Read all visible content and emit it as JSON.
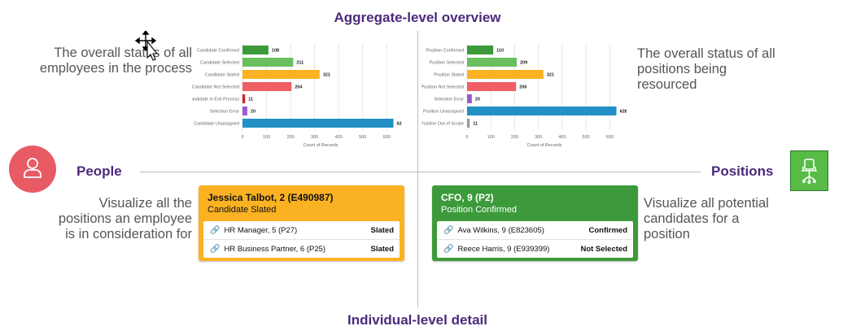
{
  "top_heading": "Aggregate-level overview",
  "bottom_heading": "Individual-level detail",
  "left_label": "People",
  "right_label": "Positions",
  "desc_top_left": [
    "The overall status of all",
    "employees in the process"
  ],
  "desc_top_right": [
    "The overall status of all",
    "positions being",
    "resourced"
  ],
  "desc_bottom_left": [
    "Visualize all the",
    "positions an employee",
    "is in consideration for"
  ],
  "desc_bottom_right": [
    "Visualize all potential",
    "candidates for a",
    "position"
  ],
  "icons": {
    "people": "person-icon",
    "positions": "office-chair-icon",
    "cursor": "move-cursor-icon",
    "link": "link-icon"
  },
  "colors": {
    "accent": "#4b2a7b",
    "people": "#e85a64",
    "positions": "#57bb46",
    "slated": "#fbb222",
    "confirmed": "#3c9a3a"
  },
  "chart_data": [
    {
      "type": "bar",
      "orientation": "horizontal",
      "categories": [
        "Candidate Confirmed",
        "Candidate Selected",
        "Candidate Slated",
        "Candidate Not Selected",
        "Candidate in Exit Process",
        "Selection Error",
        "Candidate Unassigned"
      ],
      "values": [
        108,
        211,
        321,
        204,
        11,
        20,
        628
      ],
      "colors": [
        "#3c9a3a",
        "#6abf5e",
        "#fbb222",
        "#ef5f63",
        "#d61f1f",
        "#9b59d0",
        "#2290c4"
      ],
      "xticks": [
        0,
        100,
        200,
        300,
        400,
        500,
        600
      ],
      "xlim": [
        0,
        650
      ],
      "xlabel": "Count of Records",
      "grid": true
    },
    {
      "type": "bar",
      "orientation": "horizontal",
      "categories": [
        "Position Confirmed",
        "Position Selected",
        "Position Slated",
        "Position Not Selected",
        "Selection Error",
        "Position Unassigned",
        "Position Out of Scope"
      ],
      "values": [
        110,
        209,
        321,
        206,
        20,
        628,
        11
      ],
      "colors": [
        "#3c9a3a",
        "#6abf5e",
        "#fbb222",
        "#ef5f63",
        "#9b59d0",
        "#2290c4",
        "#999999"
      ],
      "xticks": [
        0,
        100,
        200,
        300,
        400,
        500,
        600
      ],
      "xlim": [
        0,
        650
      ],
      "xlabel": "Count of Records",
      "grid": true
    }
  ],
  "person_card": {
    "title": "Jessica Talbot, 2 (E490987)",
    "subtitle": "Candidate Slated",
    "rows": [
      {
        "label": "HR Manager, 5 (P27)",
        "status": "Slated"
      },
      {
        "label": "HR Business Partner, 6 (P25)",
        "status": "Slated"
      }
    ]
  },
  "position_card": {
    "title": "CFO, 9 (P2)",
    "subtitle": "Position Confirmed",
    "rows": [
      {
        "label": "Ava Wilkins, 9 (E823605)",
        "status": "Confirmed"
      },
      {
        "label": "Reece Harris, 9 (E939399)",
        "status": "Not Selected"
      }
    ]
  }
}
